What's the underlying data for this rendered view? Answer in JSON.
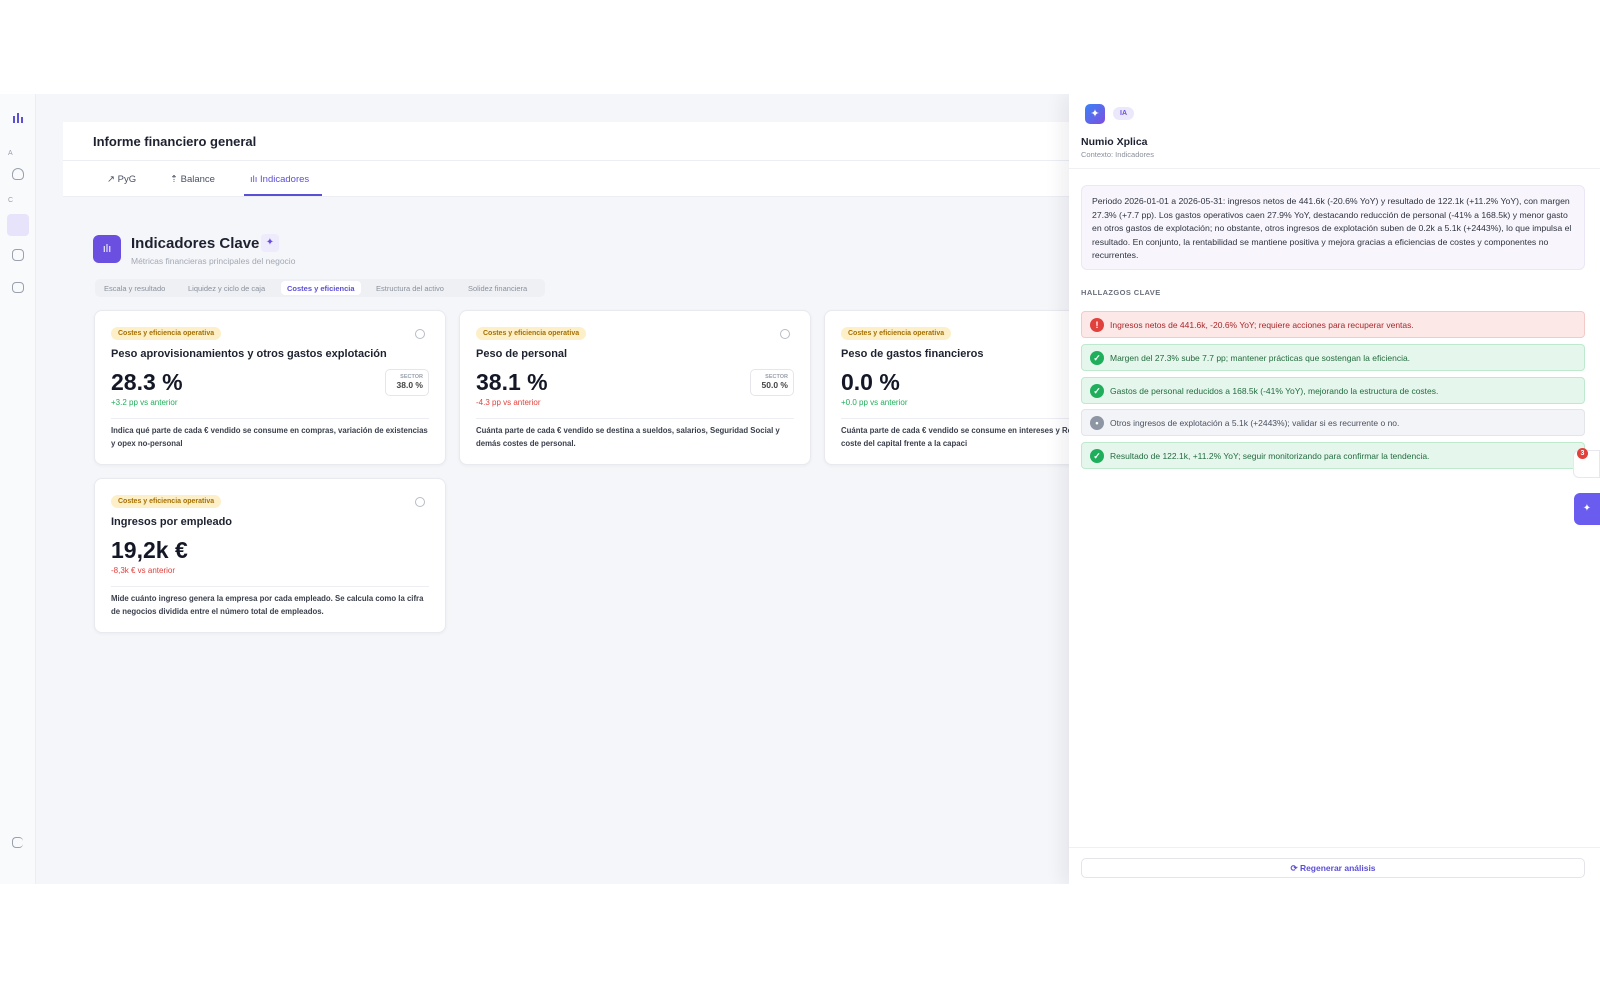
{
  "sidebar": {
    "labels": [
      "A",
      "C"
    ]
  },
  "header": {
    "title": "Informe financiero general",
    "tabs": [
      "PyG",
      "Balance",
      "Indicadores"
    ]
  },
  "section": {
    "title": "Indicadores Clave",
    "subtitle": "Métricas financieras principales del negocio",
    "subtabs": [
      "Escala y resultado",
      "Liquidez y ciclo de caja",
      "Costes y eficiencia",
      "Estructura del activo",
      "Solidez financiera"
    ]
  },
  "cards": [
    {
      "tag": "Costes y eficiencia operativa",
      "title": "Peso aprovisionamientos y otros gastos explotación",
      "value": "28.3 %",
      "delta": "+3.2 pp vs anterior",
      "sector_label": "SECTOR",
      "sector_value": "38.0 %",
      "description": "Indica qué parte de cada € vendido se consume en compras, variación de existencias y opex no-personal"
    },
    {
      "tag": "Costes y eficiencia operativa",
      "title": "Peso de personal",
      "value": "38.1 %",
      "delta": "-4.3 pp vs anterior",
      "sector_label": "SECTOR",
      "sector_value": "50.0 %",
      "description": "Cuánta parte de cada € vendido se destina a sueldos, salarios, Seguridad Social y demás costes de personal."
    },
    {
      "tag": "Costes y eficiencia operativa",
      "title": "Peso de gastos financieros",
      "value": "0.0 %",
      "delta": "+0.0 pp vs anterior",
      "description": "Cuánta parte de cada € vendido se consume en intereses y Refleja apalancamiento y coste del capital frente a la capaci"
    },
    {
      "tag": "Costes y eficiencia operativa",
      "title": "Ingresos por empleado",
      "value": "19,2k €",
      "delta": "-8,3k € vs anterior",
      "description": "Mide cuánto ingreso genera la empresa por cada empleado. Se calcula como la cifra de negocios dividida entre el número total de empleados."
    }
  ],
  "panel": {
    "badge": "IA",
    "title": "Numio Xplica",
    "context": "Contexto: Indicadores",
    "summary": "Periodo 2026-01-01 a 2026-05-31: ingresos netos de 441.6k (-20.6% YoY) y resultado de 122.1k (+11.2% YoY), con margen 27.3% (+7.7 pp). Los gastos operativos caen 27.9% YoY, destacando reducción de personal (-41% a 168.5k) y menor gasto en otros gastos de explotación; no obstante, otros ingresos de explotación suben de 0.2k a 5.1k (+2443%), lo que impulsa el resultado. En conjunto, la rentabilidad se mantiene positiva y mejora gracias a eficiencias de costes y componentes no recurrentes.",
    "findings_title": "HALLAZGOS CLAVE",
    "findings": [
      "Ingresos netos de 441.6k, -20.6% YoY; requiere acciones para recuperar ventas.",
      "Margen del 27.3% sube 7.7 pp; mantener prácticas que sostengan la eficiencia.",
      "Gastos de personal reducidos a 168.5k (-41% YoY), mejorando la estructura de costes.",
      "Otros ingresos de explotación a 5.1k (+2443%); validar si es recurrente o no.",
      "Resultado de 122.1k, +11.2% YoY; seguir monitorizando para confirmar la tendencia."
    ],
    "notification_count": "3",
    "button": "Regenerar análisis"
  }
}
